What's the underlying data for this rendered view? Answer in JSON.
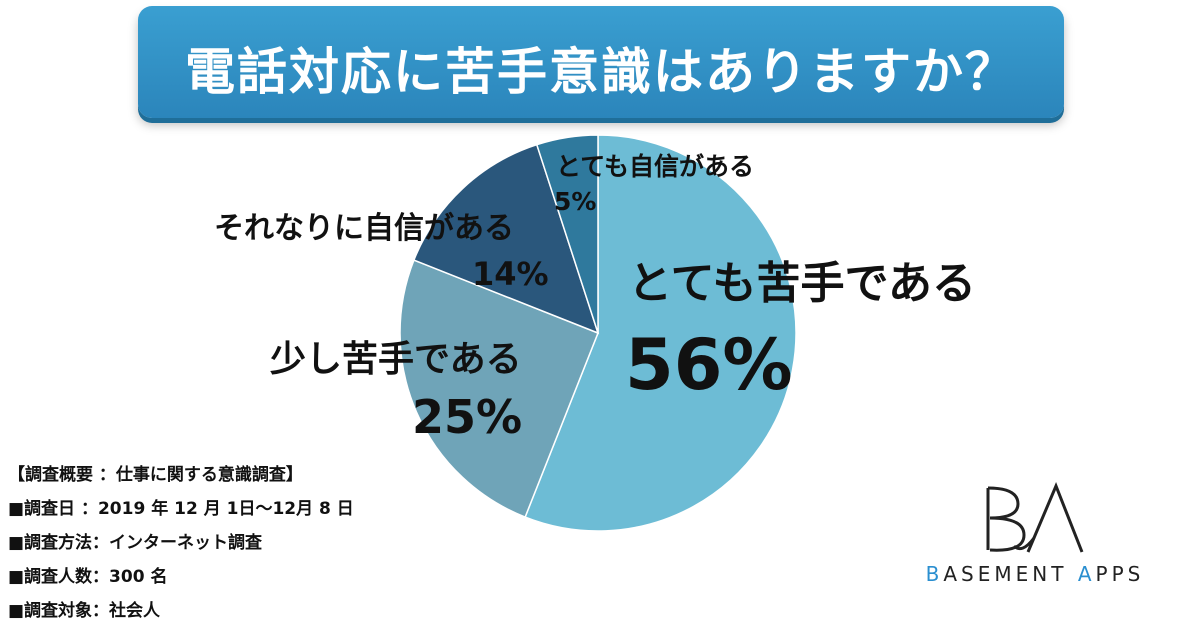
{
  "title": "電話対応に苦手意識はありますか？",
  "chart_data": {
    "type": "pie",
    "title": "電話対応に苦手意識はありますか？",
    "start": "12 o'clock, clockwise",
    "slices": [
      {
        "label": "とても苦手である",
        "value": 56,
        "value_label": "56%",
        "color": "#6dbcd5"
      },
      {
        "label": "少し苦手である",
        "value": 25,
        "value_label": "25%",
        "color": "#6fa4b8"
      },
      {
        "label": "それなりに自信がある",
        "value": 14,
        "value_label": "14%",
        "color": "#2a577c"
      },
      {
        "label": "とても自信がある",
        "value": 5,
        "value_label": "5%",
        "color": "#2f799d"
      }
    ]
  },
  "survey": [
    "【調査概要 ：仕事に関する意識調査】",
    "■調査日 ：2019 年 12 月 1日〜12月 8 日",
    "■調査方法：インターネット調査",
    "■調査人数：300 名",
    "■調査対象：社会人"
  ],
  "logo": {
    "mark": "BA",
    "text_pre": "B",
    "text_mid": "ASEMENT ",
    "text_a": "A",
    "text_post": "PPS"
  },
  "colors": {
    "banner": "#2b8fc4",
    "accent": "#2b8fd0"
  }
}
